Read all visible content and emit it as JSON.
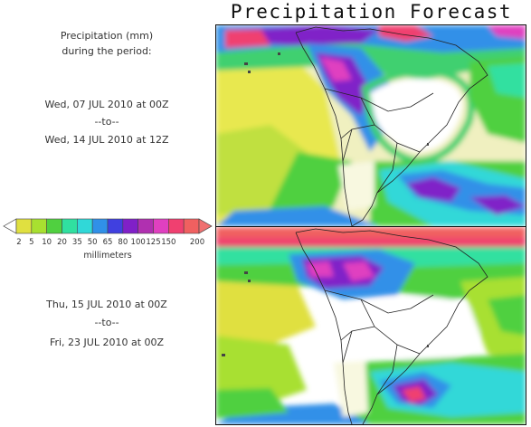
{
  "title": "Precipitation Forecast",
  "header": {
    "line1": "Precipitation (mm)",
    "line2": "during the period:"
  },
  "period1": {
    "start": "Wed, 07 JUL 2010 at 00Z",
    "sep": "--to--",
    "end": "Wed, 14 JUL 2010 at 12Z"
  },
  "period2": {
    "start": "Thu, 15 JUL 2010 at 00Z",
    "sep": "--to--",
    "end": "Fri, 23 JUL 2010 at 00Z"
  },
  "legend": {
    "unit": "millimeters",
    "ticks": [
      "2",
      "5",
      "10",
      "20",
      "35",
      "50",
      "65",
      "80",
      "100",
      "125",
      "150",
      "200"
    ],
    "colors": [
      "#e0e040",
      "#a8e030",
      "#50d040",
      "#30e0a0",
      "#30d8d8",
      "#3090e8",
      "#4040e0",
      "#8020c8",
      "#b030b0",
      "#e040c0",
      "#f04070",
      "#f06060"
    ],
    "low_color": "#ffffff",
    "high_color": "#f07070"
  }
}
